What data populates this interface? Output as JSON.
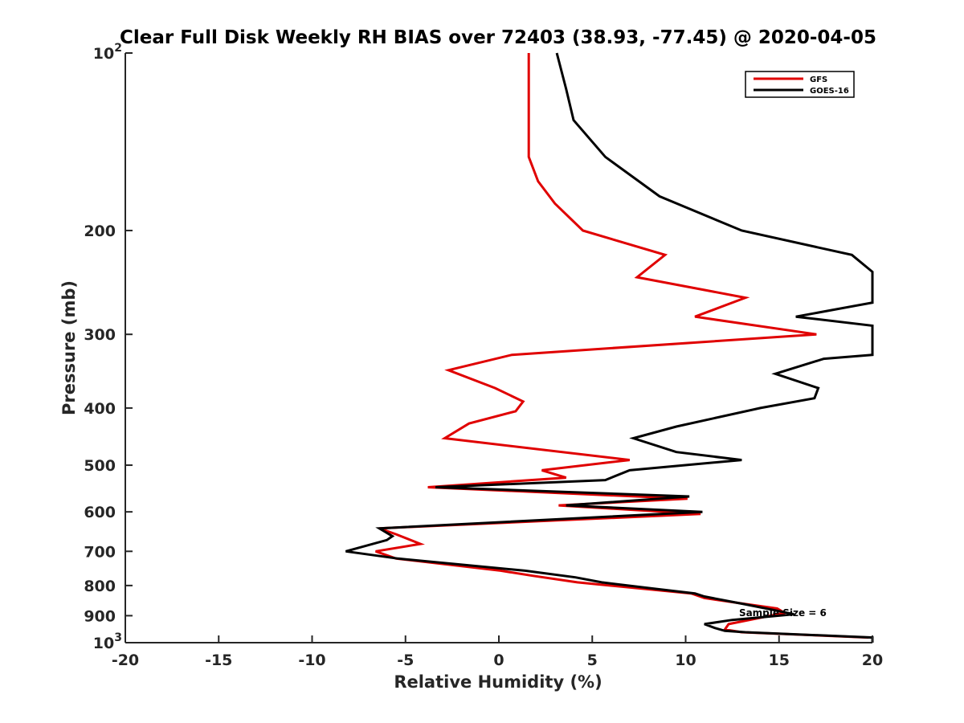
{
  "chart_data": {
    "type": "line",
    "title": "Clear Full Disk Weekly RH BIAS over 72403 (38.93, -77.45) @ 2020-04-05",
    "xlabel": "Relative Humidity (%)",
    "ylabel": "Pressure (mb)",
    "xlim": [
      -20,
      20
    ],
    "ylim": [
      100,
      1000
    ],
    "y_scale": "log",
    "y_reversed": true,
    "grid": false,
    "legend_position": "top-right",
    "x_ticks": [
      {
        "value": -20,
        "label": "-20"
      },
      {
        "value": -15,
        "label": "-15"
      },
      {
        "value": -10,
        "label": "-10"
      },
      {
        "value": -5,
        "label": "-5"
      },
      {
        "value": 0,
        "label": "0"
      },
      {
        "value": 5,
        "label": "5"
      },
      {
        "value": 10,
        "label": "10"
      },
      {
        "value": 15,
        "label": "15"
      },
      {
        "value": 20,
        "label": "20"
      }
    ],
    "y_ticks": [
      {
        "value": 100,
        "base": "10",
        "exp": "2"
      },
      {
        "value": 200,
        "label": "200"
      },
      {
        "value": 300,
        "label": "300"
      },
      {
        "value": 400,
        "label": "400"
      },
      {
        "value": 500,
        "label": "500"
      },
      {
        "value": 600,
        "label": "600"
      },
      {
        "value": 700,
        "label": "700"
      },
      {
        "value": 800,
        "label": "800"
      },
      {
        "value": 900,
        "label": "900"
      },
      {
        "value": 1000,
        "base": "10",
        "exp": "3"
      }
    ],
    "series": [
      {
        "name": "GFS",
        "color": "#e00000",
        "points": [
          [
            1.6,
            100
          ],
          [
            1.6,
            125
          ],
          [
            1.6,
            150
          ],
          [
            2.1,
            165
          ],
          [
            3.0,
            180
          ],
          [
            4.5,
            200
          ],
          [
            8.9,
            220
          ],
          [
            7.4,
            240
          ],
          [
            13.2,
            260
          ],
          [
            10.5,
            280
          ],
          [
            17.0,
            300
          ],
          [
            0.7,
            325
          ],
          [
            -2.7,
            345
          ],
          [
            -0.2,
            370
          ],
          [
            1.3,
            390
          ],
          [
            0.9,
            405
          ],
          [
            -1.6,
            425
          ],
          [
            -2.9,
            450
          ],
          [
            7.0,
            490
          ],
          [
            2.3,
            510
          ],
          [
            3.6,
            525
          ],
          [
            -3.8,
            545
          ],
          [
            10.1,
            570
          ],
          [
            3.2,
            585
          ],
          [
            10.8,
            605
          ],
          [
            -6.4,
            640
          ],
          [
            -5.5,
            655
          ],
          [
            -4.2,
            680
          ],
          [
            -6.6,
            700
          ],
          [
            -5.5,
            720
          ],
          [
            0.1,
            755
          ],
          [
            1.8,
            770
          ],
          [
            4.2,
            790
          ],
          [
            10.3,
            825
          ],
          [
            11.0,
            840
          ],
          [
            13.2,
            860
          ],
          [
            14.9,
            875
          ],
          [
            15.3,
            890
          ],
          [
            12.3,
            930
          ],
          [
            12.1,
            950
          ],
          [
            13.0,
            960
          ],
          [
            19.8,
            980
          ]
        ]
      },
      {
        "name": "GOES-16",
        "color": "#000000",
        "points": [
          [
            3.1,
            100
          ],
          [
            3.6,
            115
          ],
          [
            4.0,
            130
          ],
          [
            5.7,
            150
          ],
          [
            8.6,
            175
          ],
          [
            13.0,
            200
          ],
          [
            18.9,
            220
          ],
          [
            20.0,
            235
          ],
          [
            20.0,
            265
          ],
          [
            15.9,
            280
          ],
          [
            20.0,
            290
          ],
          [
            20.0,
            325
          ],
          [
            17.4,
            330
          ],
          [
            14.8,
            350
          ],
          [
            17.1,
            370
          ],
          [
            16.9,
            385
          ],
          [
            14.0,
            400
          ],
          [
            9.5,
            430
          ],
          [
            7.2,
            450
          ],
          [
            9.5,
            475
          ],
          [
            13.0,
            490
          ],
          [
            7.0,
            510
          ],
          [
            5.7,
            530
          ],
          [
            -3.4,
            545
          ],
          [
            10.2,
            565
          ],
          [
            3.6,
            585
          ],
          [
            10.9,
            600
          ],
          [
            -6.4,
            640
          ],
          [
            -5.7,
            660
          ],
          [
            -6.0,
            670
          ],
          [
            -8.2,
            700
          ],
          [
            -5.4,
            720
          ],
          [
            1.4,
            755
          ],
          [
            4.1,
            775
          ],
          [
            5.5,
            790
          ],
          [
            8.3,
            810
          ],
          [
            10.5,
            825
          ],
          [
            11.0,
            835
          ],
          [
            13.1,
            860
          ],
          [
            14.7,
            880
          ],
          [
            15.8,
            895
          ],
          [
            12.5,
            915
          ],
          [
            11.0,
            930
          ],
          [
            11.6,
            945
          ],
          [
            12.1,
            955
          ],
          [
            13.2,
            960
          ],
          [
            20.0,
            980
          ],
          [
            20.0,
            1000
          ]
        ]
      }
    ],
    "annotations": [
      {
        "text": "Sample Size = 6",
        "x": 15.2,
        "y": 890
      }
    ]
  }
}
